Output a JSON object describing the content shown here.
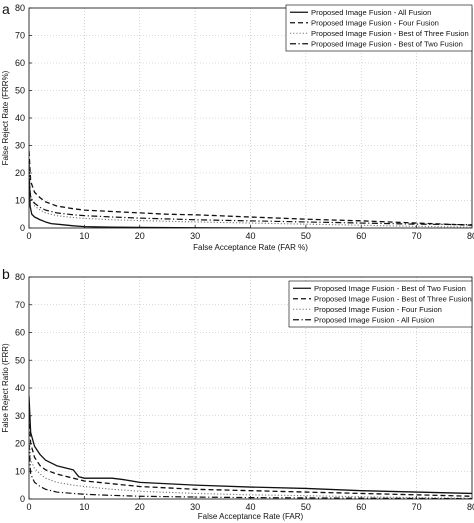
{
  "panels": [
    {
      "panel_label": "a",
      "chart_data": {
        "type": "line",
        "xlabel": "False Acceptance Rate (FAR %)",
        "ylabel": "False Reject Rate (FRR%)",
        "xlim": [
          0,
          80
        ],
        "ylim": [
          0,
          80
        ],
        "xticks": [
          "0",
          "10",
          "20",
          "30",
          "40",
          "50",
          "60",
          "70",
          "80"
        ],
        "yticks": [
          "0",
          "10",
          "20",
          "30",
          "40",
          "50",
          "60",
          "70",
          "80"
        ],
        "grid": true,
        "legend_position": "top-right",
        "series": [
          {
            "name": "Proposed Image Fusion - All Fusion",
            "style": "solid",
            "x": [
              0,
              0.2,
              0.5,
              1,
              2,
              3,
              4,
              6,
              8,
              10,
              15,
              20,
              30,
              40
            ],
            "y": [
              25,
              8,
              5,
              4,
              3,
              2.2,
              1.6,
              1.2,
              0.8,
              0.5,
              0.3,
              0.2,
              0.1,
              0
            ]
          },
          {
            "name": "Proposed Image Fusion - Four Fusion",
            "style": "dashed",
            "x": [
              0,
              0.3,
              1,
              2,
              3,
              5,
              8,
              10,
              15,
              20,
              25,
              30,
              40,
              50,
              60,
              70,
              80
            ],
            "y": [
              28,
              17,
              13,
              11,
              9.5,
              8,
              7,
              6.5,
              6,
              5.5,
              5,
              4.8,
              4,
              3.2,
              2.6,
              1.8,
              1
            ]
          },
          {
            "name": "Proposed Image Fusion - Best of Three Fusion",
            "style": "dotted",
            "x": [
              0,
              0.3,
              1,
              2,
              3,
              5,
              8,
              10,
              15,
              20,
              30,
              40,
              50,
              60,
              70,
              80
            ],
            "y": [
              22,
              12,
              8,
              6.5,
              5.5,
              4.5,
              3.8,
              3.5,
              3,
              2.7,
              2.2,
              1.8,
              1.4,
              1,
              0.6,
              0.3
            ]
          },
          {
            "name": "Proposed Image Fusion - Best of Two Fusion",
            "style": "dashdot",
            "x": [
              0,
              0.3,
              1,
              2,
              3,
              5,
              8,
              10,
              15,
              20,
              30,
              40,
              50,
              60,
              70,
              80
            ],
            "y": [
              18,
              11,
              9,
              7.5,
              6.5,
              5.5,
              4.8,
              4.5,
              4,
              3.6,
              3,
              2.6,
              2.2,
              1.8,
              1.4,
              1.2
            ]
          }
        ]
      }
    },
    {
      "panel_label": "b",
      "chart_data": {
        "type": "line",
        "xlabel": "False Acceptance Rate (FAR)",
        "ylabel": "False Reject Ratio (FRR)",
        "xlim": [
          0,
          80
        ],
        "ylim": [
          0,
          80
        ],
        "xticks": [
          "0",
          "10",
          "20",
          "30",
          "40",
          "50",
          "60",
          "70",
          "80"
        ],
        "yticks": [
          "0",
          "10",
          "20",
          "30",
          "40",
          "50",
          "60",
          "70",
          "80"
        ],
        "grid": true,
        "legend_position": "top-right",
        "series": [
          {
            "name": "Proposed Image Fusion - Best of Two Fusion",
            "style": "solid",
            "x": [
              0,
              0.3,
              1,
              2,
              3,
              4,
              5,
              6,
              7,
              8,
              9,
              10,
              15,
              17,
              20,
              30,
              40,
              50,
              60,
              70,
              80
            ],
            "y": [
              37,
              24,
              19,
              16,
              14,
              13,
              12,
              11.5,
              11,
              10.5,
              8,
              7.5,
              7.5,
              7,
              6,
              5,
              4.3,
              3.8,
              3,
              2.5,
              2
            ]
          },
          {
            "name": "Proposed Image Fusion - Best of Three Fusion",
            "style": "dashed",
            "x": [
              0,
              0.3,
              1,
              2,
              3,
              5,
              8,
              10,
              15,
              20,
              30,
              40,
              50,
              60,
              70,
              80
            ],
            "y": [
              30,
              20,
              15,
              12,
              10.5,
              9,
              7.5,
              6.5,
              5.5,
              4.5,
              3.5,
              3,
              2.5,
              2,
              1.5,
              1
            ]
          },
          {
            "name": "Proposed Image Fusion - Four Fusion",
            "style": "dotted",
            "x": [
              0,
              0.3,
              1,
              2,
              3,
              5,
              8,
              10,
              15,
              20,
              30,
              40,
              50,
              60,
              70,
              80
            ],
            "y": [
              25,
              14,
              11,
              9,
              7.5,
              6,
              5,
              4.5,
              3.5,
              2.8,
              2,
              1.5,
              1.2,
              0.8,
              0.5,
              0.3
            ]
          },
          {
            "name": "Proposed Image Fusion - All Fusion",
            "style": "dashdot",
            "x": [
              0,
              0.3,
              1,
              2,
              3,
              5,
              8,
              10,
              15,
              20,
              30,
              40,
              50,
              60,
              70,
              80
            ],
            "y": [
              20,
              9,
              6,
              4.5,
              3.5,
              2.5,
              2,
              1.7,
              1.3,
              1,
              0.7,
              0.5,
              0.4,
              0.3,
              0.2,
              0.1
            ]
          }
        ]
      }
    }
  ]
}
